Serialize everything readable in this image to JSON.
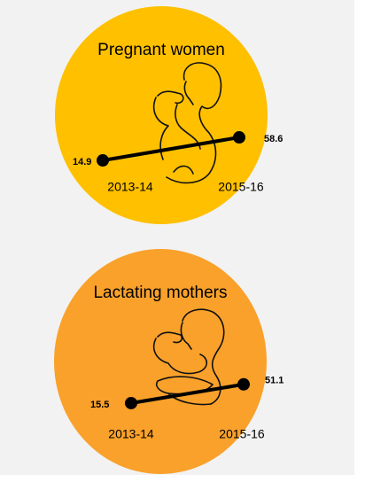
{
  "chart_data": [
    {
      "type": "line",
      "title": "Pregnant women",
      "categories": [
        "2013-14",
        "2015-16"
      ],
      "values": [
        14.9,
        58.6
      ],
      "color": "#000000"
    },
    {
      "type": "line",
      "title": "Lactating mothers",
      "categories": [
        "2013-14",
        "2015-16"
      ],
      "values": [
        15.5,
        51.1
      ],
      "color": "#000000"
    }
  ]
}
